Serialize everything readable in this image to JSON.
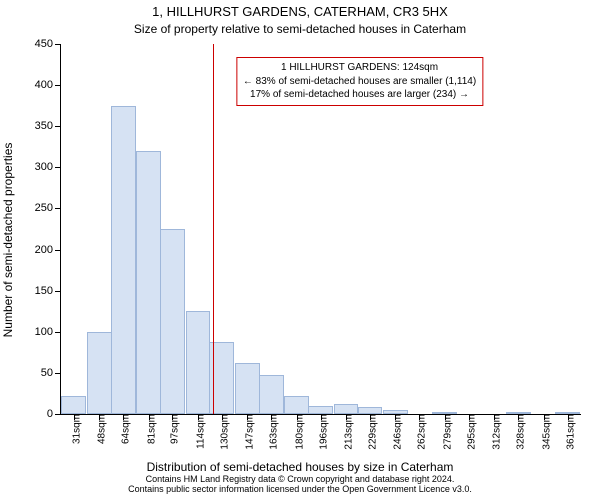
{
  "chart": {
    "type": "histogram",
    "title_line1": "1, HILLHURST GARDENS, CATERHAM, CR3 5HX",
    "title_line2": "Size of property relative to semi-detached houses in Caterham",
    "ylabel": "Number of semi-detached properties",
    "xlabel": "Distribution of semi-detached houses by size in Caterham",
    "footnote_line1": "Contains HM Land Registry data © Crown copyright and database right 2024.",
    "footnote_line2": "Contains public sector information licensed under the Open Government Licence v3.0.",
    "background_color": "#ffffff",
    "axis_color": "#000000",
    "bar_fill": "#d6e2f3",
    "bar_stroke": "#9fb7da",
    "vline_color": "#cc0000",
    "annotation_border": "#cc0000",
    "annotation_bg": "#ffffff",
    "title_fontsize": 13,
    "subtitle_fontsize": 12,
    "axis_label_fontsize": 12,
    "tick_fontsize": 11,
    "xtick_fontsize": 10,
    "annotation_fontsize": 10,
    "footnote_fontsize": 9,
    "ylim": [
      0,
      450
    ],
    "ytick_step": 50,
    "yticks": [
      0,
      50,
      100,
      150,
      200,
      250,
      300,
      350,
      400,
      450
    ],
    "xlim": [
      22.5,
      370
    ],
    "xticks": [
      31,
      48,
      64,
      81,
      97,
      114,
      130,
      147,
      163,
      180,
      196,
      213,
      229,
      246,
      262,
      279,
      295,
      312,
      328,
      345,
      361
    ],
    "xtick_labels": [
      "31sqm",
      "48sqm",
      "64sqm",
      "81sqm",
      "97sqm",
      "114sqm",
      "130sqm",
      "147sqm",
      "163sqm",
      "180sqm",
      "196sqm",
      "213sqm",
      "229sqm",
      "246sqm",
      "262sqm",
      "279sqm",
      "295sqm",
      "312sqm",
      "328sqm",
      "345sqm",
      "361sqm"
    ],
    "bar_width_data": 16.6,
    "bar_centers": [
      31,
      48,
      64,
      81,
      97,
      114,
      130,
      147,
      163,
      180,
      196,
      213,
      229,
      246,
      262,
      279,
      295,
      312,
      328,
      345,
      361
    ],
    "bar_values": [
      22,
      100,
      375,
      320,
      225,
      125,
      88,
      62,
      48,
      22,
      10,
      12,
      8,
      5,
      0,
      3,
      0,
      0,
      2,
      0,
      2
    ],
    "vline_x": 124,
    "annotation": {
      "line1": "1 HILLHURST GARDENS: 124sqm",
      "line2": "← 83% of semi-detached houses are smaller (1,114)",
      "line3": "17% of semi-detached houses are larger (234) →",
      "x_center_data": 222,
      "y_top_data": 434
    }
  }
}
